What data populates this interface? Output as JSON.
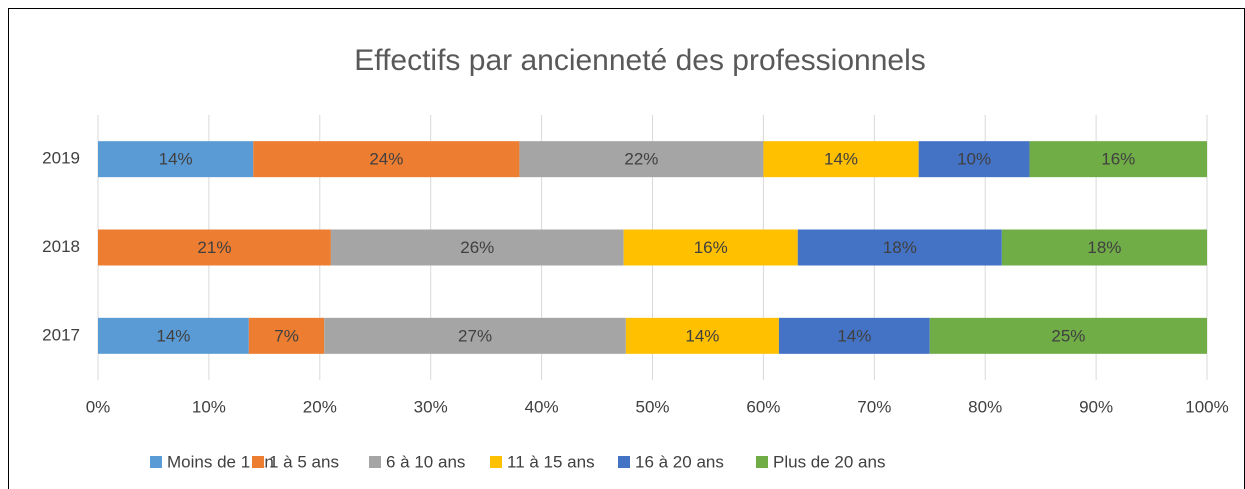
{
  "chart_data": {
    "type": "stacked-bar-horizontal",
    "title": "Effectifs par ancienneté des professionnels",
    "categories": [
      "2017",
      "2018",
      "2019"
    ],
    "series": [
      {
        "name": "Moins de 1 an",
        "color": "#5b9bd5",
        "values": [
          13.6,
          null,
          14
        ],
        "value_labels": [
          "14%",
          null,
          "14%"
        ]
      },
      {
        "name": "1 à 5 ans",
        "color": "#ed7d31",
        "values": [
          6.8,
          21,
          24
        ],
        "value_labels": [
          "7%",
          "21%",
          "24%"
        ]
      },
      {
        "name": "6 à 10 ans",
        "color": "#a5a5a5",
        "values": [
          27.2,
          26.4,
          22
        ],
        "value_labels": [
          "27%",
          "26%",
          "22%"
        ]
      },
      {
        "name": "11 à 15 ans",
        "color": "#ffc000",
        "values": [
          13.8,
          15.7,
          14
        ],
        "value_labels": [
          "14%",
          "16%",
          "14%"
        ]
      },
      {
        "name": "16 à 20 ans",
        "color": "#4472c4",
        "values": [
          13.6,
          18.4,
          10
        ],
        "value_labels": [
          "14%",
          "18%",
          "10%"
        ]
      },
      {
        "name": "Plus de 20 ans",
        "color": "#70ad47",
        "values": [
          25,
          18.5,
          16
        ],
        "value_labels": [
          "25%",
          "18%",
          "16%"
        ]
      }
    ],
    "xlim": [
      0,
      100
    ],
    "xticks": [
      {
        "value": 0,
        "label": "0%"
      },
      {
        "value": 10,
        "label": "10%"
      },
      {
        "value": 20,
        "label": "20%"
      },
      {
        "value": 30,
        "label": "30%"
      },
      {
        "value": 40,
        "label": "40%"
      },
      {
        "value": 50,
        "label": "50%"
      },
      {
        "value": 60,
        "label": "60%"
      },
      {
        "value": 70,
        "label": "70%"
      },
      {
        "value": 80,
        "label": "80%"
      },
      {
        "value": 90,
        "label": "90%"
      },
      {
        "value": 100,
        "label": "100%"
      }
    ],
    "grid": true,
    "legend": "bottom"
  }
}
